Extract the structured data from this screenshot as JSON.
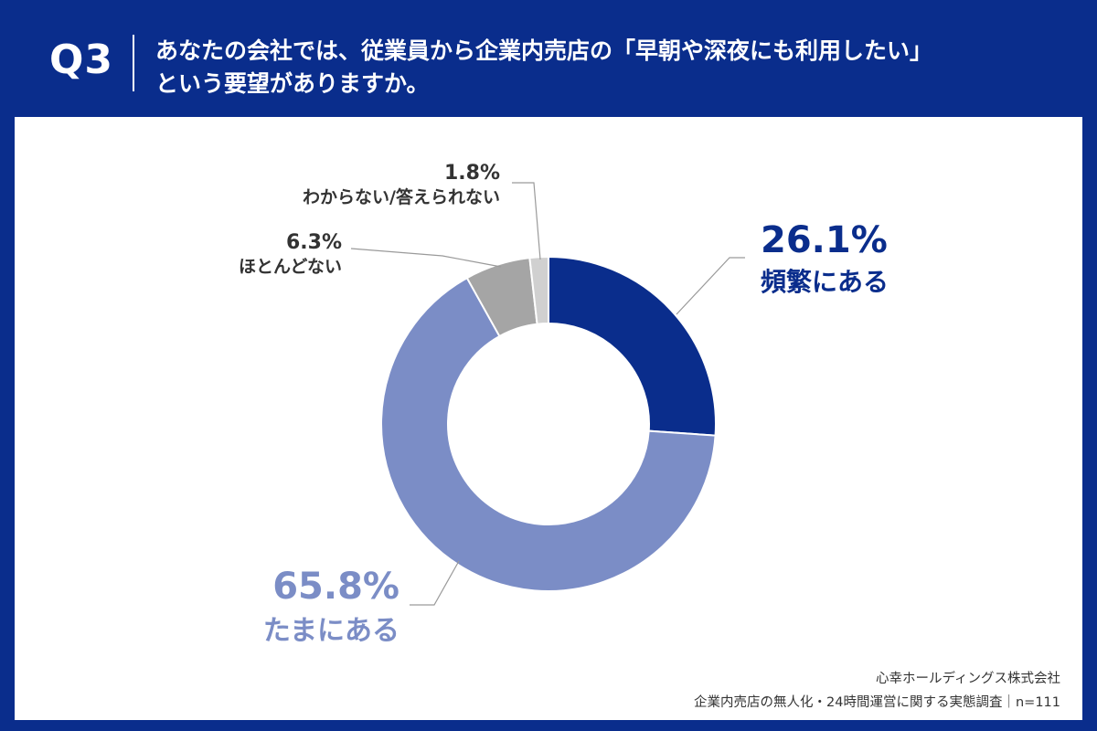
{
  "header": {
    "question_number": "Q3",
    "question_line1": "あなたの会社では、従業員から企業内売店の「早朝や深夜にも利用したい」",
    "question_line2": "という要望がありますか。"
  },
  "chart_data": {
    "type": "pie",
    "style": "donut",
    "categories": [
      "頻繁にある",
      "たまにある",
      "ほとんどない",
      "わからない/答えられない"
    ],
    "values": [
      26.1,
      65.8,
      6.3,
      1.8
    ],
    "value_labels": [
      "26.1%",
      "65.8%",
      "6.3%",
      "1.8%"
    ],
    "colors": [
      "#0a2d8c",
      "#7b8dc6",
      "#a5a5a5",
      "#d0d0d0"
    ],
    "start_angle": "12 o'clock",
    "direction": "clockwise"
  },
  "footer": {
    "company": "心幸ホールディングス株式会社",
    "survey": "企業内売店の無人化・24時間運営に関する実態調査｜n=111"
  }
}
